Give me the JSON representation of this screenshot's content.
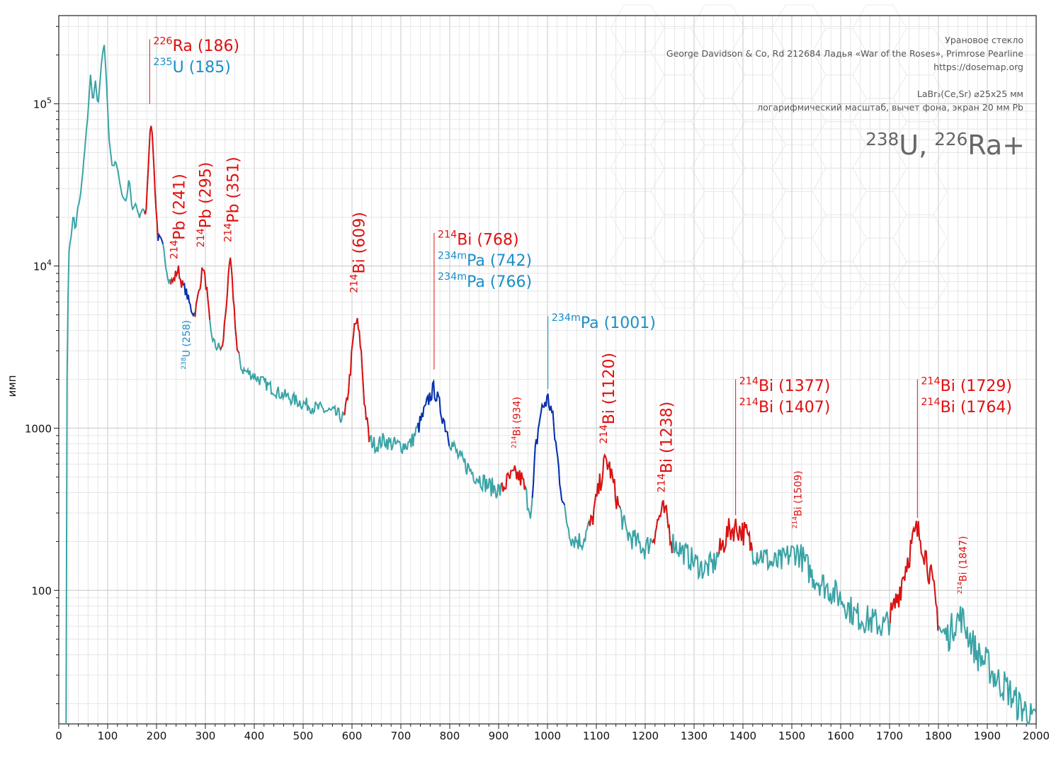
{
  "info": {
    "line1": "Урановое стекло",
    "line2": "George Davidson & Co, Rd 212684 Ладья «War of the Roses», Primrose Pearline",
    "line3": "https://dosemap.org",
    "line4": "LaBr₃(Ce,Sr) ⌀25x25 мм",
    "line5": "логарифмический масштаб, вычет фона, экран 20 мм Pb",
    "title_sup1": "238",
    "title_el1": "U,",
    "title_sup2": "226",
    "title_el2": "Ra+"
  },
  "colors": {
    "background_curve": "#3aa3a5",
    "ra_series": "#e01010",
    "u_series": "#0a2fb0",
    "ra_label": "#e01010",
    "u_label": "#1a8fc8",
    "grid_major": "#c8c8c8",
    "grid_minor": "#e6e6e6"
  },
  "chart_data": {
    "type": "line",
    "xlabel": "",
    "ylabel": "имп",
    "xlim": [
      0,
      2000
    ],
    "ylim": [
      15,
      350000
    ],
    "y_scale": "log",
    "grid": true,
    "x_ticks": [
      "0",
      "100",
      "200",
      "300",
      "400",
      "500",
      "600",
      "700",
      "800",
      "900",
      "1000",
      "1100",
      "1200",
      "1300",
      "1400",
      "1500",
      "1600",
      "1700",
      "1800",
      "1900",
      "2000"
    ],
    "y_ticks": [
      {
        "value": 100,
        "label": "100"
      },
      {
        "value": 1000,
        "label": "1000"
      },
      {
        "value": 10000,
        "base": "10",
        "exp": "4"
      },
      {
        "value": 100000,
        "base": "10",
        "exp": "5"
      }
    ],
    "spectrum": [
      [
        15,
        15
      ],
      [
        17,
        2000
      ],
      [
        20,
        12000
      ],
      [
        25,
        15000
      ],
      [
        30,
        21000
      ],
      [
        34,
        16000
      ],
      [
        38,
        22000
      ],
      [
        45,
        28000
      ],
      [
        55,
        60000
      ],
      [
        60,
        90000
      ],
      [
        65,
        150000
      ],
      [
        70,
        100000
      ],
      [
        75,
        140000
      ],
      [
        80,
        95000
      ],
      [
        88,
        190000
      ],
      [
        93,
        230000
      ],
      [
        98,
        130000
      ],
      [
        103,
        60000
      ],
      [
        110,
        40000
      ],
      [
        116,
        45000
      ],
      [
        121,
        38000
      ],
      [
        130,
        27000
      ],
      [
        138,
        25000
      ],
      [
        144,
        35000
      ],
      [
        150,
        22000
      ],
      [
        157,
        24000
      ],
      [
        165,
        20000
      ],
      [
        172,
        23000
      ],
      [
        178,
        20000
      ],
      [
        188,
        80000
      ],
      [
        192,
        60000
      ],
      [
        198,
        25000
      ],
      [
        203,
        15000
      ],
      [
        210,
        14000
      ],
      [
        216,
        12000
      ],
      [
        222,
        9000
      ],
      [
        228,
        8000
      ],
      [
        234,
        8000
      ],
      [
        240,
        9000
      ],
      [
        245,
        9500
      ],
      [
        250,
        8000
      ],
      [
        260,
        7000
      ],
      [
        270,
        5500
      ],
      [
        278,
        5000
      ],
      [
        285,
        6500
      ],
      [
        295,
        10000
      ],
      [
        303,
        7000
      ],
      [
        310,
        4000
      ],
      [
        320,
        3200
      ],
      [
        335,
        3100
      ],
      [
        345,
        7000
      ],
      [
        351,
        11000
      ],
      [
        358,
        6000
      ],
      [
        365,
        3000
      ],
      [
        375,
        2300
      ],
      [
        400,
        2100
      ],
      [
        420,
        1900
      ],
      [
        450,
        1650
      ],
      [
        480,
        1500
      ],
      [
        520,
        1350
      ],
      [
        560,
        1250
      ],
      [
        585,
        1150
      ],
      [
        595,
        2000
      ],
      [
        605,
        4200
      ],
      [
        610,
        4600
      ],
      [
        618,
        3200
      ],
      [
        625,
        1500
      ],
      [
        635,
        850
      ],
      [
        650,
        780
      ],
      [
        665,
        850
      ],
      [
        680,
        800
      ],
      [
        700,
        780
      ],
      [
        720,
        800
      ],
      [
        735,
        1000
      ],
      [
        750,
        1300
      ],
      [
        760,
        1600
      ],
      [
        768,
        1750
      ],
      [
        775,
        1500
      ],
      [
        785,
        1200
      ],
      [
        800,
        850
      ],
      [
        820,
        650
      ],
      [
        850,
        520
      ],
      [
        880,
        440
      ],
      [
        905,
        410
      ],
      [
        920,
        480
      ],
      [
        935,
        520
      ],
      [
        948,
        480
      ],
      [
        960,
        350
      ],
      [
        968,
        300
      ],
      [
        975,
        700
      ],
      [
        985,
        1200
      ],
      [
        995,
        1450
      ],
      [
        1001,
        1500
      ],
      [
        1008,
        1300
      ],
      [
        1015,
        900
      ],
      [
        1025,
        500
      ],
      [
        1035,
        300
      ],
      [
        1050,
        210
      ],
      [
        1070,
        200
      ],
      [
        1090,
        260
      ],
      [
        1105,
        420
      ],
      [
        1115,
        580
      ],
      [
        1120,
        630
      ],
      [
        1128,
        560
      ],
      [
        1140,
        380
      ],
      [
        1160,
        230
      ],
      [
        1180,
        200
      ],
      [
        1200,
        180
      ],
      [
        1215,
        210
      ],
      [
        1230,
        290
      ],
      [
        1238,
        310
      ],
      [
        1245,
        270
      ],
      [
        1255,
        200
      ],
      [
        1280,
        170
      ],
      [
        1300,
        150
      ],
      [
        1320,
        135
      ],
      [
        1340,
        145
      ],
      [
        1355,
        180
      ],
      [
        1370,
        230
      ],
      [
        1385,
        245
      ],
      [
        1395,
        235
      ],
      [
        1407,
        220
      ],
      [
        1420,
        175
      ],
      [
        1440,
        165
      ],
      [
        1460,
        145
      ],
      [
        1480,
        150
      ],
      [
        1495,
        165
      ],
      [
        1509,
        175
      ],
      [
        1520,
        160
      ],
      [
        1540,
        125
      ],
      [
        1570,
        105
      ],
      [
        1600,
        90
      ],
      [
        1630,
        70
      ],
      [
        1660,
        65
      ],
      [
        1690,
        60
      ],
      [
        1705,
        70
      ],
      [
        1720,
        100
      ],
      [
        1740,
        170
      ],
      [
        1755,
        230
      ],
      [
        1765,
        210
      ],
      [
        1780,
        140
      ],
      [
        1795,
        80
      ],
      [
        1805,
        55
      ],
      [
        1820,
        52
      ],
      [
        1835,
        65
      ],
      [
        1847,
        68
      ],
      [
        1860,
        55
      ],
      [
        1880,
        40
      ],
      [
        1900,
        35
      ],
      [
        1920,
        28
      ],
      [
        1940,
        25
      ],
      [
        1960,
        20
      ],
      [
        1980,
        18
      ],
      [
        1995,
        15
      ],
      [
        2000,
        16
      ]
    ],
    "highlight_segments": [
      {
        "series": "ra",
        "range": [
          175,
          203
        ]
      },
      {
        "series": "u",
        "range": [
          203,
          213
        ]
      },
      {
        "series": "ra",
        "range": [
          228,
          255
        ]
      },
      {
        "series": "u",
        "range": [
          255,
          278
        ]
      },
      {
        "series": "ra",
        "range": [
          278,
          310
        ]
      },
      {
        "series": "ra",
        "range": [
          330,
          370
        ]
      },
      {
        "series": "ra",
        "range": [
          585,
          635
        ]
      },
      {
        "series": "u",
        "range": [
          735,
          800
        ]
      },
      {
        "series": "ra",
        "range": [
          905,
          955
        ]
      },
      {
        "series": "u",
        "range": [
          968,
          1035
        ]
      },
      {
        "series": "ra",
        "range": [
          1085,
          1150
        ]
      },
      {
        "series": "ra",
        "range": [
          1215,
          1255
        ]
      },
      {
        "series": "ra",
        "range": [
          1350,
          1420
        ]
      },
      {
        "series": "ra",
        "range": [
          1700,
          1800
        ]
      }
    ],
    "annotations": [
      {
        "x": 186,
        "series": "ra",
        "rotated": false,
        "size": 22,
        "line": [
          250000,
          100000
        ],
        "lines": [
          {
            "sup": "226",
            "text": "Ra (186)",
            "color": "ra"
          },
          {
            "sup": "235",
            "text": "U (185)",
            "color": "u"
          }
        ]
      },
      {
        "x": 241,
        "series": "ra",
        "rotated": true,
        "size": 22,
        "anchor_y": 11000,
        "lines": [
          {
            "sup": "214",
            "text": "Pb (241)",
            "color": "ra"
          }
        ]
      },
      {
        "x": 295,
        "series": "ra",
        "rotated": true,
        "size": 22,
        "anchor_y": 13000,
        "lines": [
          {
            "sup": "214",
            "text": "Pb (295)",
            "color": "ra"
          }
        ]
      },
      {
        "x": 351,
        "series": "ra",
        "rotated": true,
        "size": 22,
        "anchor_y": 14000,
        "lines": [
          {
            "sup": "214",
            "text": "Pb (351)",
            "color": "ra"
          }
        ]
      },
      {
        "x": 258,
        "series": "u",
        "rotated": true,
        "size": 14,
        "anchor_y": 2300,
        "lines": [
          {
            "sup": "238",
            "text": "U (258)",
            "color": "u"
          }
        ]
      },
      {
        "x": 609,
        "series": "ra",
        "rotated": true,
        "size": 22,
        "anchor_y": 6800,
        "lines": [
          {
            "sup": "214",
            "text": "Bi (609)",
            "color": "ra"
          }
        ]
      },
      {
        "x": 768,
        "series": "ra",
        "rotated": false,
        "size": 22,
        "line": [
          16000,
          2300
        ],
        "lines": [
          {
            "sup": "214",
            "text": "Bi (768)",
            "color": "ra"
          },
          {
            "sup": "234m",
            "text": "Pa (742)",
            "color": "u"
          },
          {
            "sup": "234m",
            "text": "Pa (766)",
            "color": "u"
          }
        ]
      },
      {
        "x": 934,
        "series": "ra",
        "rotated": true,
        "size": 14,
        "anchor_y": 750,
        "lines": [
          {
            "sup": "214",
            "text": "Bi (934)",
            "color": "ra"
          }
        ]
      },
      {
        "x": 1001,
        "series": "u",
        "rotated": false,
        "size": 22,
        "line": [
          4900,
          1750
        ],
        "lines": [
          {
            "sup": "234m",
            "text": "Pa (1001)",
            "color": "u"
          }
        ]
      },
      {
        "x": 1120,
        "series": "ra",
        "rotated": true,
        "size": 22,
        "anchor_y": 800,
        "lines": [
          {
            "sup": "214",
            "text": "Bi (1120)",
            "color": "ra"
          }
        ]
      },
      {
        "x": 1238,
        "series": "ra",
        "rotated": true,
        "size": 22,
        "anchor_y": 400,
        "lines": [
          {
            "sup": "214",
            "text": "Bi (1238)",
            "color": "ra"
          }
        ]
      },
      {
        "x": 1385,
        "series": "ra",
        "rotated": false,
        "size": 22,
        "line": [
          2000,
          290
        ],
        "lines": [
          {
            "sup": "214",
            "text": "Bi (1377)",
            "color": "ra"
          },
          {
            "sup": "214",
            "text": "Bi (1407)",
            "color": "ra"
          }
        ]
      },
      {
        "x": 1509,
        "series": "u",
        "rotated": true,
        "size": 14,
        "anchor_y": 240,
        "lines": [
          {
            "sup": "214",
            "text": "Bi (1509)",
            "color": "ra"
          }
        ]
      },
      {
        "x": 1757,
        "series": "ra",
        "rotated": false,
        "size": 22,
        "line": [
          2000,
          280
        ],
        "lines": [
          {
            "sup": "214",
            "text": "Bi (1729)",
            "color": "ra"
          },
          {
            "sup": "214",
            "text": "Bi (1764)",
            "color": "ra"
          }
        ]
      },
      {
        "x": 1847,
        "series": "ra",
        "rotated": true,
        "size": 14,
        "anchor_y": 95,
        "lines": [
          {
            "sup": "214",
            "text": "Bi (1847)",
            "color": "ra"
          }
        ]
      }
    ]
  }
}
